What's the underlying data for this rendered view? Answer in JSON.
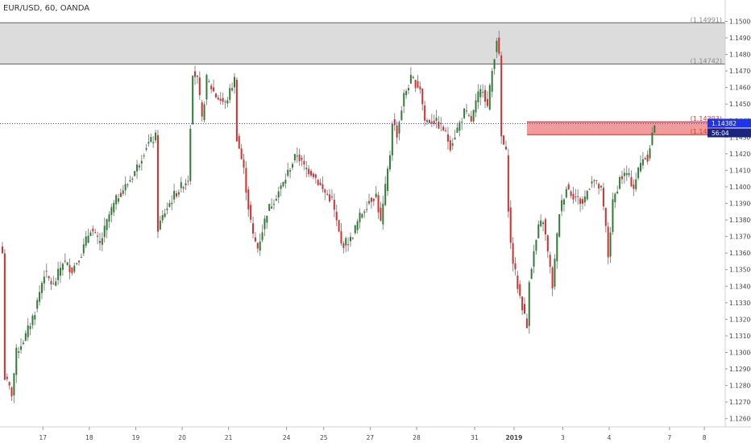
{
  "header": {
    "symbol": "EUR/USD, 60, OANDA"
  },
  "colors": {
    "up": "#2e7d32",
    "down": "#d32f2f",
    "wick": "#888888",
    "resistance_fill": "#dcdcdc",
    "resistance_border": "#666666",
    "support_fill": "#ee8a8a",
    "support_border": "#c62828",
    "price_line": "#3a46ff",
    "price_tag": "#1e34e6",
    "timer_tag": "#1a237e"
  },
  "chart_data": {
    "type": "candlestick",
    "ylim": [
      1.1255,
      1.1508
    ],
    "price_ticks": [
      "1.15000",
      "1.14900",
      "1.14800",
      "1.14700",
      "1.14600",
      "1.14500",
      "1.14400",
      "1.14300",
      "1.14200",
      "1.14100",
      "1.14000",
      "1.13900",
      "1.13800",
      "1.13700",
      "1.13600",
      "1.13500",
      "1.13400",
      "1.13300",
      "1.13200",
      "1.13100",
      "1.13000",
      "1.12900",
      "1.12800",
      "1.12700",
      "1.12600"
    ],
    "time_ticks": [
      {
        "label": "17",
        "bar": 6,
        "bold": false
      },
      {
        "label": "18",
        "bar": 26,
        "bold": false
      },
      {
        "label": "19",
        "bar": 46,
        "bold": false
      },
      {
        "label": "20",
        "bar": 66,
        "bold": false
      },
      {
        "label": "21",
        "bar": 86,
        "bold": false
      },
      {
        "label": "24",
        "bar": 111,
        "bold": false
      },
      {
        "label": "25",
        "bar": 127,
        "bold": false
      },
      {
        "label": "27",
        "bar": 147,
        "bold": false
      },
      {
        "label": "28",
        "bar": 167,
        "bold": false
      },
      {
        "label": "31",
        "bar": 192,
        "bold": false
      },
      {
        "label": "2019",
        "bar": 209,
        "bold": true
      },
      {
        "label": "3",
        "bar": 230,
        "bold": false
      },
      {
        "label": "4",
        "bar": 250,
        "bold": false
      },
      {
        "label": "7",
        "bar": 276,
        "bold": false
      },
      {
        "label": "8",
        "bar": 291,
        "bold": false
      }
    ],
    "zones": [
      {
        "name": "resistance",
        "low": 1.14742,
        "high": 1.14991,
        "label_high": "(1.14991)",
        "label_low": "(1.14742)"
      },
      {
        "name": "support",
        "low": 1.14315,
        "high": 1.14393,
        "label_high": "(1.14393)",
        "label_low": "(1.14315)"
      }
    ],
    "current_price": {
      "value": 1.14382,
      "label": "1.14382",
      "timer": "56:04"
    },
    "waypoints": [
      [
        0,
        1.136
      ],
      [
        1,
        1.1285
      ],
      [
        4,
        1.1275
      ],
      [
        6,
        1.13
      ],
      [
        10,
        1.131
      ],
      [
        14,
        1.1325
      ],
      [
        18,
        1.1348
      ],
      [
        22,
        1.134
      ],
      [
        26,
        1.1355
      ],
      [
        30,
        1.135
      ],
      [
        34,
        1.136
      ],
      [
        38,
        1.1375
      ],
      [
        42,
        1.1365
      ],
      [
        46,
        1.1383
      ],
      [
        50,
        1.1395
      ],
      [
        54,
        1.1402
      ],
      [
        58,
        1.1412
      ],
      [
        62,
        1.1425
      ],
      [
        66,
        1.143
      ],
      [
        67,
        1.1375
      ],
      [
        70,
        1.1385
      ],
      [
        74,
        1.1395
      ],
      [
        80,
        1.1405
      ],
      [
        82,
        1.147
      ],
      [
        84,
        1.1465
      ],
      [
        86,
        1.144
      ],
      [
        88,
        1.1465
      ],
      [
        92,
        1.1455
      ],
      [
        96,
        1.145
      ],
      [
        100,
        1.1465
      ],
      [
        101,
        1.143
      ],
      [
        104,
        1.141
      ],
      [
        106,
        1.1388
      ],
      [
        108,
        1.137
      ],
      [
        110,
        1.1363
      ],
      [
        114,
        1.1385
      ],
      [
        118,
        1.1395
      ],
      [
        121,
        1.1402
      ],
      [
        124,
        1.1412
      ],
      [
        127,
        1.142
      ],
      [
        130,
        1.1412
      ],
      [
        134,
        1.1408
      ],
      [
        138,
        1.1398
      ],
      [
        142,
        1.1392
      ],
      [
        146,
        1.1365
      ],
      [
        150,
        1.1368
      ],
      [
        154,
        1.1382
      ],
      [
        158,
        1.1392
      ],
      [
        161,
        1.1395
      ],
      [
        163,
        1.1378
      ],
      [
        167,
        1.142
      ],
      [
        168,
        1.144
      ],
      [
        170,
        1.1432
      ],
      [
        173,
        1.1455
      ],
      [
        176,
        1.1465
      ],
      [
        180,
        1.146
      ],
      [
        182,
        1.144
      ],
      [
        186,
        1.144
      ],
      [
        190,
        1.1435
      ],
      [
        193,
        1.1425
      ],
      [
        196,
        1.1435
      ],
      [
        199,
        1.1445
      ],
      [
        202,
        1.144
      ],
      [
        205,
        1.1455
      ],
      [
        207,
        1.146
      ],
      [
        209,
        1.1448
      ],
      [
        211,
        1.147
      ],
      [
        213,
        1.149
      ],
      [
        214,
        1.1478
      ],
      [
        215,
        1.143
      ],
      [
        217,
        1.142
      ],
      [
        218,
        1.1388
      ],
      [
        219,
        1.1365
      ],
      [
        220,
        1.1355
      ],
      [
        222,
        1.134
      ],
      [
        224,
        1.1328
      ],
      [
        226,
        1.1315
      ],
      [
        227,
        1.1345
      ],
      [
        229,
        1.136
      ],
      [
        231,
        1.1375
      ],
      [
        233,
        1.138
      ],
      [
        235,
        1.136
      ],
      [
        237,
        1.134
      ],
      [
        240,
        1.1385
      ],
      [
        243,
        1.14
      ],
      [
        246,
        1.1395
      ],
      [
        250,
        1.139
      ],
      [
        254,
        1.1405
      ],
      [
        258,
        1.1398
      ],
      [
        260,
        1.1375
      ],
      [
        261,
        1.1358
      ],
      [
        263,
        1.139
      ],
      [
        266,
        1.1405
      ],
      [
        269,
        1.1408
      ],
      [
        272,
        1.14
      ],
      [
        274,
        1.141
      ],
      [
        276,
        1.1418
      ],
      [
        278,
        1.1418
      ],
      [
        280,
        1.1432
      ],
      [
        281,
        1.1438
      ]
    ]
  }
}
